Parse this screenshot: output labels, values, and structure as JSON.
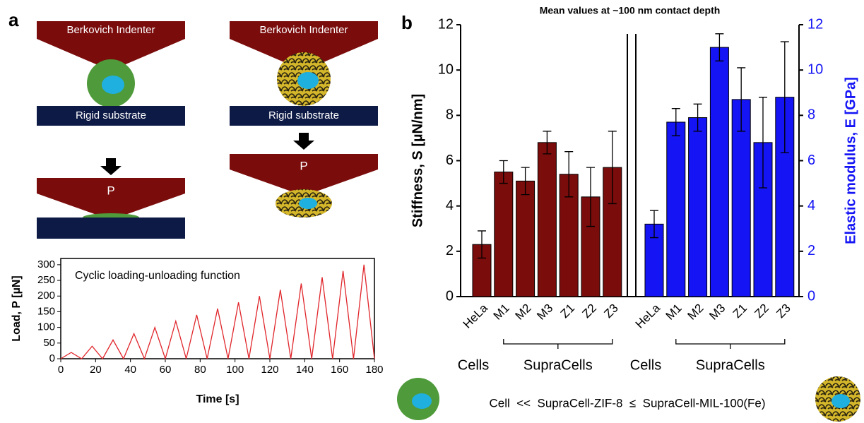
{
  "panel_labels": [
    "a",
    "b"
  ],
  "diagram": {
    "indenter_label": "Berkovich Indenter",
    "substrate_label": "Rigid substrate",
    "load_label": "P"
  },
  "chart_data": [
    {
      "type": "line",
      "annotation": "Cyclic loading-unloading function",
      "xlabel": "Time [s]",
      "ylabel": "Load, P [µN]",
      "x": [
        0,
        6,
        12,
        18,
        24,
        30,
        36,
        42,
        48,
        54,
        60,
        66,
        72,
        78,
        84,
        90,
        96,
        102,
        108,
        114,
        120,
        126,
        132,
        138,
        144,
        150,
        156,
        162,
        168,
        174,
        180
      ],
      "values": [
        0,
        20,
        0,
        40,
        0,
        60,
        0,
        80,
        0,
        100,
        0,
        120,
        0,
        140,
        0,
        160,
        0,
        180,
        0,
        200,
        0,
        220,
        0,
        240,
        0,
        260,
        0,
        280,
        0,
        300,
        0
      ],
      "color": "#e0262b",
      "xlim": [
        0,
        180
      ],
      "xticks": [
        0,
        20,
        40,
        60,
        80,
        100,
        120,
        140,
        160,
        180
      ],
      "ylim": [
        0,
        320
      ],
      "yticks": [
        0,
        50,
        100,
        150,
        200,
        250,
        300
      ]
    },
    {
      "type": "bar",
      "title": "Mean values at ~100 nm contact depth",
      "categories": [
        "HeLa",
        "M1",
        "M2",
        "M3",
        "Z1",
        "Z2",
        "Z3"
      ],
      "groups": [
        "Cells",
        "SupraCells"
      ],
      "ylabel": "Stiffness, S [µN/nm]",
      "y2label": "Elastic modulus, E [GPa]",
      "series": [
        {
          "color": "#7b0c0c",
          "values": [
            2.3,
            5.5,
            5.1,
            6.8,
            5.4,
            4.4,
            5.7
          ],
          "errors": [
            0.6,
            0.5,
            0.6,
            0.5,
            1.0,
            1.3,
            1.6
          ]
        },
        {
          "color": "#1414f5",
          "axis": "y2",
          "values": [
            3.2,
            7.7,
            7.9,
            11.0,
            8.7,
            6.8,
            8.8
          ],
          "errors": [
            0.6,
            0.6,
            0.6,
            0.6,
            1.4,
            2.0,
            2.45
          ]
        }
      ],
      "ylim": [
        0,
        12
      ],
      "yticks": [
        0,
        2,
        4,
        6,
        8,
        10,
        12
      ],
      "y2lim": [
        0,
        12
      ],
      "y2ticks": [
        0,
        2,
        4,
        6,
        8,
        10,
        12
      ]
    }
  ],
  "footnote": "Cell  <<  SupraCell-ZIF-8  ≤  SupraCell-MIL-100(Fe)"
}
